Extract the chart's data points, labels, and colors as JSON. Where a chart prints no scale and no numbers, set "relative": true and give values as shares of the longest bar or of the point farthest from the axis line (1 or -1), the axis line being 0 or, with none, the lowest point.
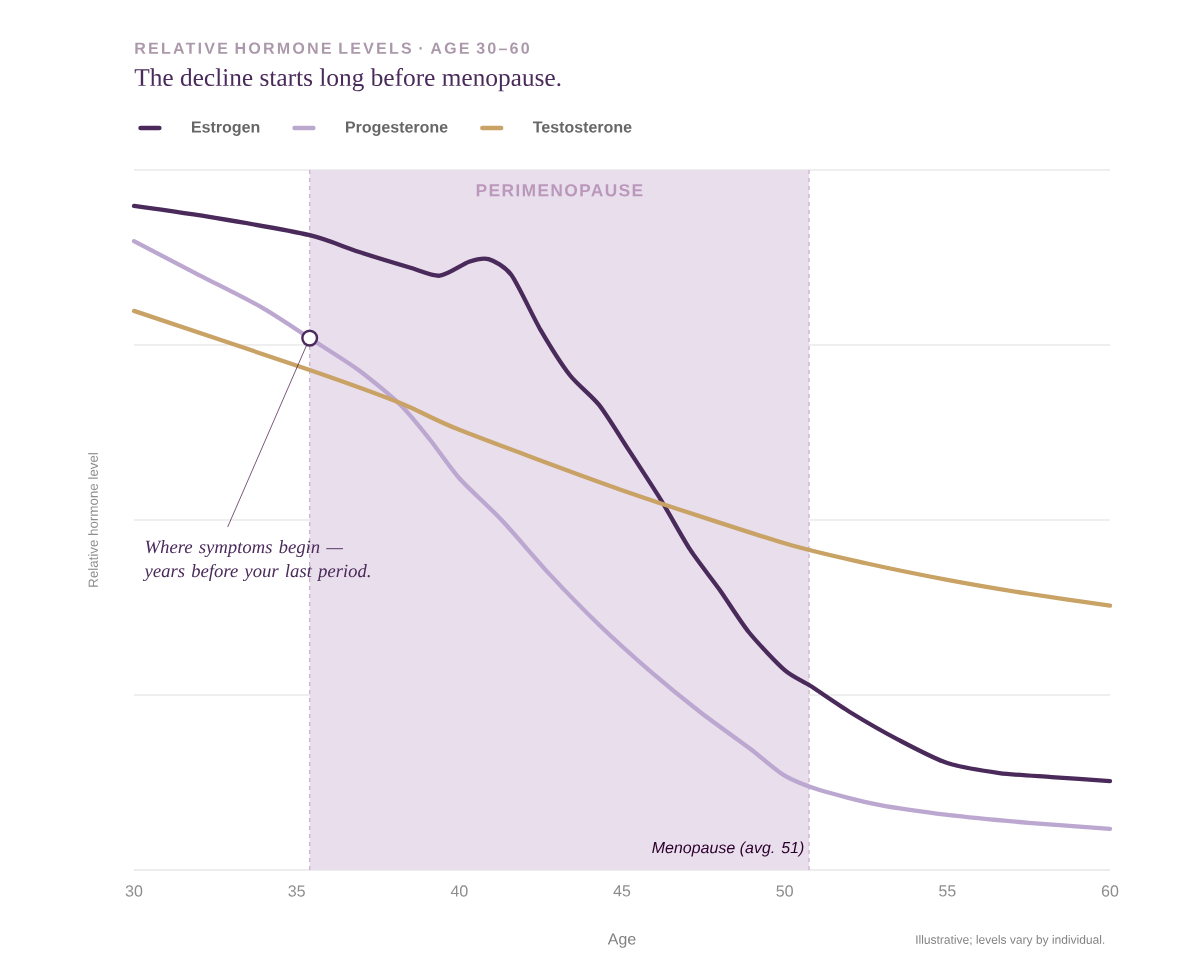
{
  "chart_data": {
    "type": "line",
    "title": "RELATIVE HORMONE LEVELS · AGE 30–60",
    "subtitle": "The decline starts long before menopause.",
    "xlabel": "Age",
    "ylabel": "Relative hormone level",
    "relative": true,
    "xlim": [
      30,
      60
    ],
    "xticks": [
      30,
      35,
      40,
      45,
      50,
      55,
      60
    ],
    "grid": "y",
    "legend": "top left",
    "series": [
      {
        "name": "Estrogen",
        "color": "#4a2a5a",
        "x": [
          30,
          32.5,
          35.4,
          36.9,
          38.5,
          39.4,
          40.3,
          40.9,
          41.6,
          42.5,
          43.4,
          44.3,
          45.2,
          46.2,
          47.1,
          48.0,
          48.9,
          50.0,
          50.8,
          52.0,
          53.5,
          55,
          56.6,
          58.2,
          60
        ],
        "values": [
          1.0,
          0.982,
          0.956,
          0.931,
          0.907,
          0.895,
          0.916,
          0.92,
          0.896,
          0.813,
          0.745,
          0.7,
          0.633,
          0.557,
          0.482,
          0.422,
          0.358,
          0.301,
          0.277,
          0.238,
          0.196,
          0.161,
          0.146,
          0.14,
          0.134
        ]
      },
      {
        "name": "Progesterone",
        "color": "#bba7d0",
        "x": [
          30,
          32.0,
          33.9,
          35.4,
          36.9,
          38.2,
          39.1,
          40.0,
          41.3,
          42.8,
          44.3,
          45.9,
          47.4,
          48.9,
          50.0,
          51.1,
          52.9,
          55,
          57.5,
          60
        ],
        "values": [
          0.947,
          0.896,
          0.848,
          0.801,
          0.753,
          0.7,
          0.648,
          0.59,
          0.527,
          0.444,
          0.369,
          0.298,
          0.238,
          0.184,
          0.142,
          0.12,
          0.098,
          0.083,
          0.071,
          0.062
        ]
      },
      {
        "name": "Testosterone",
        "color": "#c9a265",
        "x": [
          30,
          35.4,
          38.2,
          40,
          45,
          50,
          52.5,
          55,
          57.5,
          60
        ],
        "values": [
          0.842,
          0.753,
          0.703,
          0.663,
          0.572,
          0.492,
          0.462,
          0.437,
          0.416,
          0.398
        ]
      }
    ],
    "bands": [
      {
        "axis": "x",
        "from": 35.4,
        "to": 50.75,
        "label": "PERIMENOPAUSE",
        "color": "#e8deec"
      }
    ],
    "ref_lines": [
      {
        "axis": "x",
        "value": 35.4,
        "color": "#c4a8c8",
        "line_style": "dashed"
      },
      {
        "axis": "x",
        "value": 50.75,
        "label": "Menopause (avg. 51)",
        "color": "#c4a8c8",
        "line_style": "dashed"
      }
    ],
    "annotations": [
      {
        "text": "Where symptoms begin — years before your last period.",
        "x": 35.4,
        "y": 0.801
      },
      "Illustrative; levels vary by individual."
    ]
  }
}
